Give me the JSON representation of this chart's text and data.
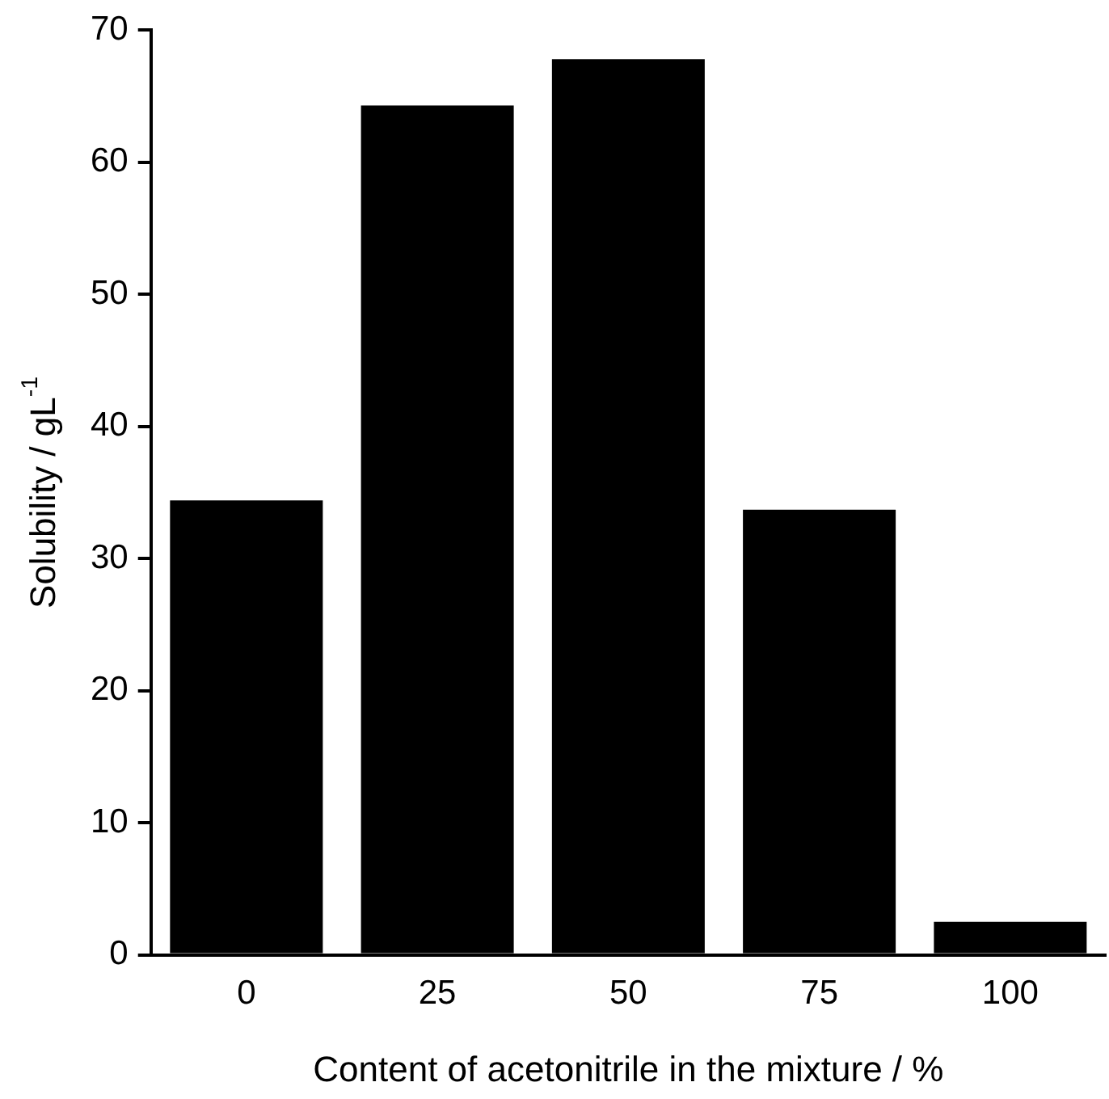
{
  "chart_data": {
    "type": "bar",
    "xlabel": "Content of acetonitrile in the mixture / %",
    "ylabel": "Solubility / gL$^{-1}$",
    "categories": [
      "0",
      "25",
      "50",
      "75",
      "100"
    ],
    "values": [
      34.4,
      64.3,
      67.8,
      33.7,
      2.5
    ],
    "color": "#000000",
    "ylim": [
      0,
      70
    ],
    "yticks": [
      0,
      10,
      20,
      30,
      40,
      50,
      60,
      70
    ],
    "grid": false,
    "legend": false
  }
}
